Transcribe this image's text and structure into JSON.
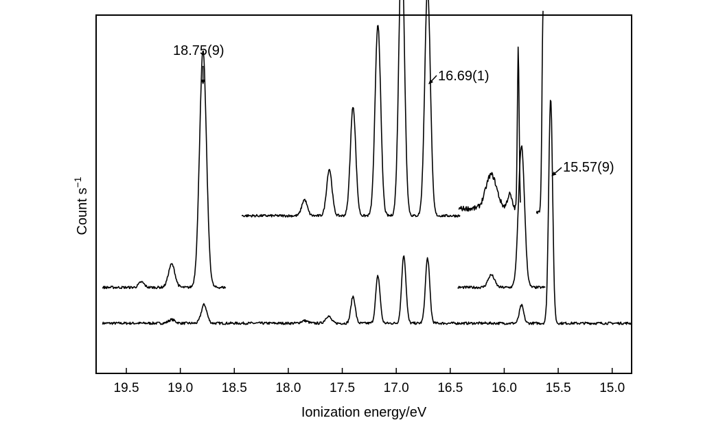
{
  "chart_data": {
    "type": "line",
    "xlabel": "Ionization energy/eV",
    "ylabel_main": "Count s",
    "ylabel_sup": "−1",
    "xlim": [
      19.78,
      14.82
    ],
    "x_reversed": true,
    "y_ticks_shown": false,
    "xticks": [
      19.5,
      19.0,
      18.5,
      18.0,
      17.5,
      17.0,
      16.5,
      16.0,
      15.5,
      15.0
    ],
    "xtick_labels": [
      "19.5",
      "19.0",
      "18.5",
      "18.0",
      "17.5",
      "17.0",
      "16.5",
      "16.0",
      "15.5",
      "15.0"
    ],
    "units_note": "y values in arbitrary count-rate units (0 = bottom of frame, 100 = top)",
    "series": [
      {
        "baseline": 14,
        "range": [
          19.72,
          14.82
        ],
        "peaks": [
          {
            "x": 19.08,
            "h": 1.0,
            "w": 0.03
          },
          {
            "x": 18.78,
            "h": 5.2,
            "w": 0.026
          },
          {
            "x": 17.85,
            "h": 0.7,
            "w": 0.03
          },
          {
            "x": 17.63,
            "h": 2.0,
            "w": 0.026
          },
          {
            "x": 17.4,
            "h": 7.5,
            "w": 0.02
          },
          {
            "x": 17.17,
            "h": 13.2,
            "w": 0.02
          },
          {
            "x": 16.93,
            "h": 19.0,
            "w": 0.02
          },
          {
            "x": 16.71,
            "h": 18.2,
            "w": 0.02
          },
          {
            "x": 15.84,
            "h": 5.0,
            "w": 0.02
          },
          {
            "x": 15.57,
            "h": 63.0,
            "w": 0.018
          }
        ]
      },
      {
        "baseline": 24,
        "range": [
          19.72,
          18.58
        ],
        "peaks": [
          {
            "x": 19.36,
            "h": 1.5,
            "w": 0.025
          },
          {
            "x": 19.08,
            "h": 6.5,
            "w": 0.03
          },
          {
            "x": 18.79,
            "h": 66.0,
            "w": 0.032
          }
        ]
      },
      {
        "baseline": 44,
        "range": [
          18.43,
          16.41
        ],
        "peaks": [
          {
            "x": 17.85,
            "h": 4.5,
            "w": 0.025
          },
          {
            "x": 17.62,
            "h": 13.0,
            "w": 0.025
          },
          {
            "x": 17.4,
            "h": 30.5,
            "w": 0.025
          },
          {
            "x": 17.17,
            "h": 53.5,
            "w": 0.026
          },
          {
            "x": 16.95,
            "h": 76.0,
            "w": 0.026
          },
          {
            "x": 16.71,
            "h": 64.0,
            "w": 0.026
          }
        ]
      },
      {
        "baseline": 24,
        "range": [
          16.43,
          15.62
        ],
        "peaks": [
          {
            "x": 16.12,
            "h": 3.5,
            "w": 0.03
          },
          {
            "x": 15.84,
            "h": 39.5,
            "w": 0.028
          }
        ]
      },
      {
        "baseline": 46,
        "range": [
          16.42,
          15.85
        ],
        "peaks": [
          {
            "x": 16.12,
            "h": 9.5,
            "w": 0.05
          },
          {
            "x": 15.95,
            "h": 4.0,
            "w": 0.02
          },
          {
            "x": 15.87,
            "h": 45.0,
            "w": 0.008
          }
        ]
      },
      {
        "baseline": 45,
        "range": [
          15.7,
          15.64
        ],
        "peaks": [
          {
            "x": 15.64,
            "h": 56.0,
            "w": 0.01
          }
        ]
      }
    ],
    "annotations": [
      {
        "text": "18.75(9)",
        "x": 18.79
      },
      {
        "text": "16.69(1)",
        "x": 16.71
      },
      {
        "text": "15.57(9)",
        "x": 15.57
      }
    ]
  }
}
